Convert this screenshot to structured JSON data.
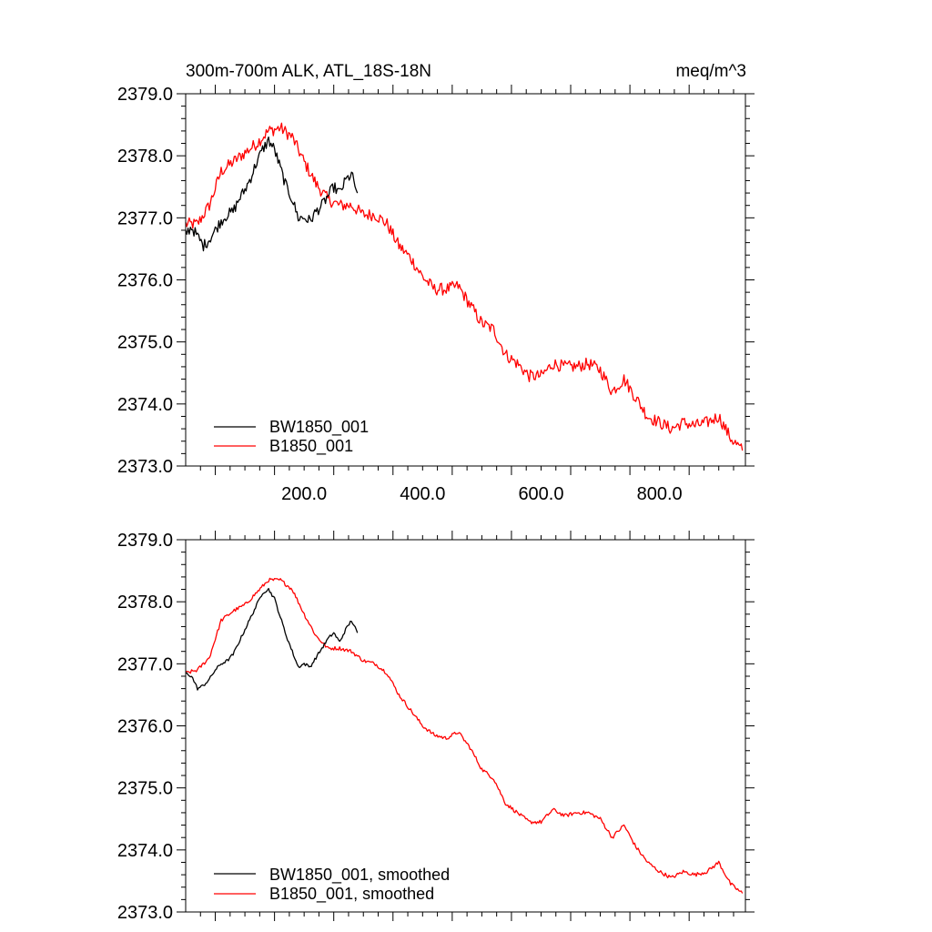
{
  "colors": {
    "series_black": "#000000",
    "series_red": "#ff0000",
    "axis": "#000000",
    "background": "#ffffff"
  },
  "chart_data": [
    {
      "type": "line",
      "title": "300m-700m ALK, ATL_18S-18N",
      "units": "meq/m^3",
      "xlim": [
        0,
        945
      ],
      "ylim": [
        2373.0,
        2379.0
      ],
      "x_ticks": [
        200,
        400,
        600,
        800
      ],
      "x_tick_labels": [
        "200.0",
        "400.0",
        "600.0",
        "800.0"
      ],
      "y_ticks": [
        2373,
        2374,
        2375,
        2376,
        2377,
        2378,
        2379
      ],
      "y_tick_labels": [
        "2373.0",
        "2374.0",
        "2375.0",
        "2376.0",
        "2377.0",
        "2378.0",
        "2379.0"
      ],
      "grid": false,
      "legend_position": "bottom-left",
      "series": [
        {
          "name": "BW1850_001",
          "color": "#000000",
          "noise": 0.09,
          "x": [
            0,
            10,
            20,
            30,
            40,
            50,
            60,
            70,
            80,
            90,
            100,
            110,
            120,
            130,
            140,
            150,
            160,
            170,
            180,
            190,
            200,
            210,
            220,
            230,
            240,
            250,
            260,
            270,
            280,
            290
          ],
          "y": [
            2376.75,
            2376.85,
            2376.7,
            2376.55,
            2376.65,
            2376.8,
            2376.95,
            2377.05,
            2377.1,
            2377.3,
            2377.45,
            2377.65,
            2377.9,
            2378.1,
            2378.25,
            2378.1,
            2377.8,
            2377.5,
            2377.3,
            2377.0,
            2377.0,
            2376.95,
            2377.1,
            2377.2,
            2377.35,
            2377.5,
            2377.4,
            2377.6,
            2377.7,
            2377.4
          ]
        },
        {
          "name": "B1850_001",
          "color": "#ff0000",
          "noise": 0.1,
          "x": [
            0,
            20,
            40,
            60,
            80,
            100,
            120,
            140,
            160,
            180,
            200,
            220,
            240,
            260,
            280,
            300,
            320,
            340,
            360,
            380,
            400,
            420,
            440,
            460,
            480,
            500,
            520,
            540,
            560,
            580,
            600,
            620,
            640,
            660,
            680,
            700,
            720,
            740,
            760,
            780,
            800,
            820,
            840,
            860,
            880,
            900,
            920,
            940
          ],
          "y": [
            2376.9,
            2376.9,
            2377.2,
            2377.75,
            2377.9,
            2378.05,
            2378.2,
            2378.4,
            2378.45,
            2378.3,
            2377.9,
            2377.55,
            2377.3,
            2377.2,
            2377.2,
            2377.05,
            2377.05,
            2376.9,
            2376.55,
            2376.35,
            2376.05,
            2375.85,
            2375.85,
            2375.9,
            2375.6,
            2375.3,
            2375.2,
            2374.8,
            2374.65,
            2374.45,
            2374.45,
            2374.65,
            2374.6,
            2374.6,
            2374.65,
            2374.55,
            2374.2,
            2374.4,
            2374.1,
            2373.8,
            2373.7,
            2373.6,
            2373.7,
            2373.65,
            2373.7,
            2373.8,
            2373.45,
            2373.25
          ]
        }
      ]
    },
    {
      "type": "line",
      "xlim": [
        0,
        945
      ],
      "ylim": [
        2373.0,
        2379.0
      ],
      "y_ticks": [
        2373,
        2374,
        2375,
        2376,
        2377,
        2378,
        2379
      ],
      "y_tick_labels": [
        "2373.0",
        "2374.0",
        "2375.0",
        "2376.0",
        "2377.0",
        "2378.0",
        "2379.0"
      ],
      "grid": false,
      "legend_position": "bottom-left",
      "series": [
        {
          "name": "BW1850_001, smoothed",
          "color": "#000000",
          "noise": 0.025,
          "x": [
            0,
            10,
            20,
            30,
            40,
            50,
            60,
            70,
            80,
            90,
            100,
            110,
            120,
            130,
            140,
            150,
            160,
            170,
            180,
            190,
            200,
            210,
            220,
            230,
            240,
            250,
            260,
            270,
            280,
            290
          ],
          "y": [
            2376.85,
            2376.8,
            2376.6,
            2376.65,
            2376.75,
            2376.9,
            2377.0,
            2377.05,
            2377.15,
            2377.35,
            2377.55,
            2377.75,
            2377.95,
            2378.15,
            2378.2,
            2378.05,
            2377.75,
            2377.45,
            2377.2,
            2376.95,
            2377.0,
            2376.95,
            2377.1,
            2377.25,
            2377.4,
            2377.5,
            2377.35,
            2377.55,
            2377.7,
            2377.5
          ]
        },
        {
          "name": "B1850_001, smoothed",
          "color": "#ff0000",
          "noise": 0.03,
          "x": [
            0,
            20,
            40,
            60,
            80,
            100,
            120,
            140,
            160,
            180,
            200,
            220,
            240,
            260,
            280,
            300,
            320,
            340,
            360,
            380,
            400,
            420,
            440,
            460,
            480,
            500,
            520,
            540,
            560,
            580,
            600,
            620,
            640,
            660,
            680,
            700,
            720,
            740,
            760,
            780,
            800,
            820,
            840,
            860,
            880,
            900,
            920,
            940
          ],
          "y": [
            2376.85,
            2376.9,
            2377.1,
            2377.7,
            2377.85,
            2377.95,
            2378.15,
            2378.35,
            2378.35,
            2378.2,
            2377.8,
            2377.45,
            2377.25,
            2377.25,
            2377.2,
            2377.05,
            2377.0,
            2376.85,
            2376.5,
            2376.25,
            2376.0,
            2375.85,
            2375.8,
            2375.9,
            2375.65,
            2375.3,
            2375.15,
            2374.75,
            2374.6,
            2374.45,
            2374.45,
            2374.65,
            2374.55,
            2374.6,
            2374.6,
            2374.5,
            2374.2,
            2374.4,
            2374.05,
            2373.8,
            2373.65,
            2373.55,
            2373.65,
            2373.6,
            2373.65,
            2373.8,
            2373.45,
            2373.3
          ]
        }
      ]
    }
  ]
}
